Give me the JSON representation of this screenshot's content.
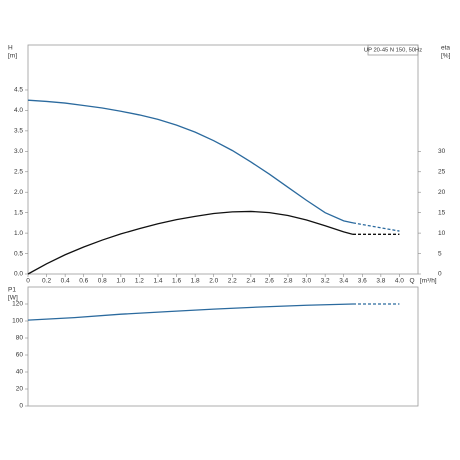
{
  "chart_data": [
    {
      "type": "line",
      "legend": "UP 20-45 N 150, 50Hz",
      "xlabel": [
        "Q",
        "[m³/h]"
      ],
      "ylabel": [
        "H",
        "[m]"
      ],
      "y2label": [
        "eta",
        "[%]"
      ],
      "xlim": [
        0,
        4.2
      ],
      "xticks": [
        0,
        0.2,
        0.4,
        0.6,
        0.8,
        {
          "value": 1,
          "label": "1.0"
        },
        1.2,
        1.4,
        1.6,
        1.8,
        {
          "value": 2,
          "label": "2.0"
        },
        2.2,
        2.4,
        2.6,
        2.8,
        {
          "value": 3,
          "label": "3.0"
        },
        3.2,
        3.4,
        3.6,
        3.8,
        {
          "value": 4,
          "label": "4.0"
        }
      ],
      "ylim": [
        0,
        5.6
      ],
      "yticks": [
        {
          "value": 0,
          "label": "0.0"
        },
        0.5,
        {
          "value": 1,
          "label": "1.0"
        },
        1.5,
        {
          "value": 2,
          "label": "2.0"
        },
        2.5,
        {
          "value": 3,
          "label": "3.0"
        },
        3.5,
        {
          "value": 4,
          "label": "4.0"
        },
        4.5
      ],
      "y2lim": [
        0,
        56
      ],
      "y2ticks": [
        0,
        5,
        10,
        15,
        20,
        25,
        30
      ],
      "grid": false,
      "series": [
        {
          "color": "#2b6a9e",
          "dashed": false,
          "x": [
            0,
            0.2,
            0.4,
            0.6,
            0.8,
            1.0,
            1.2,
            1.4,
            1.6,
            1.8,
            2.0,
            2.2,
            2.4,
            2.6,
            2.8,
            3.0,
            3.2,
            3.4,
            3.5
          ],
          "values": [
            4.25,
            4.22,
            4.18,
            4.12,
            4.06,
            3.98,
            3.89,
            3.78,
            3.64,
            3.47,
            3.26,
            3.02,
            2.74,
            2.44,
            2.12,
            1.8,
            1.5,
            1.3,
            1.25
          ]
        },
        {
          "color": "#2b6a9e",
          "dashed": true,
          "x": [
            3.5,
            4.0
          ],
          "values": [
            1.25,
            1.05
          ]
        },
        {
          "color": "#111111",
          "dashed": false,
          "axis": "y2",
          "x": [
            0,
            0.2,
            0.4,
            0.6,
            0.8,
            1.0,
            1.2,
            1.4,
            1.6,
            1.8,
            2.0,
            2.2,
            2.4,
            2.6,
            2.8,
            3.0,
            3.2,
            3.4,
            3.5
          ],
          "values": [
            0,
            2.5,
            4.7,
            6.6,
            8.3,
            9.8,
            11.1,
            12.3,
            13.3,
            14.1,
            14.8,
            15.2,
            15.3,
            15.0,
            14.3,
            13.2,
            11.8,
            10.3,
            9.7
          ]
        },
        {
          "color": "#111111",
          "dashed": true,
          "axis": "y2",
          "x": [
            3.5,
            4.0
          ],
          "values": [
            9.7,
            9.7
          ]
        }
      ]
    },
    {
      "type": "line",
      "ylabel": [
        "P1",
        "[W]"
      ],
      "xlim": [
        0,
        4.2
      ],
      "ylim": [
        0,
        140
      ],
      "yticks": [
        0,
        20,
        40,
        60,
        80,
        100,
        120
      ],
      "grid": false,
      "series": [
        {
          "color": "#2b6a9e",
          "dashed": false,
          "x": [
            0,
            0.5,
            1.0,
            1.5,
            2.0,
            2.5,
            3.0,
            3.5
          ],
          "values": [
            101,
            104,
            108,
            111,
            114,
            116.5,
            118.5,
            120
          ]
        },
        {
          "color": "#2b6a9e",
          "dashed": true,
          "x": [
            3.5,
            4.0
          ],
          "values": [
            120,
            120
          ]
        }
      ]
    }
  ]
}
